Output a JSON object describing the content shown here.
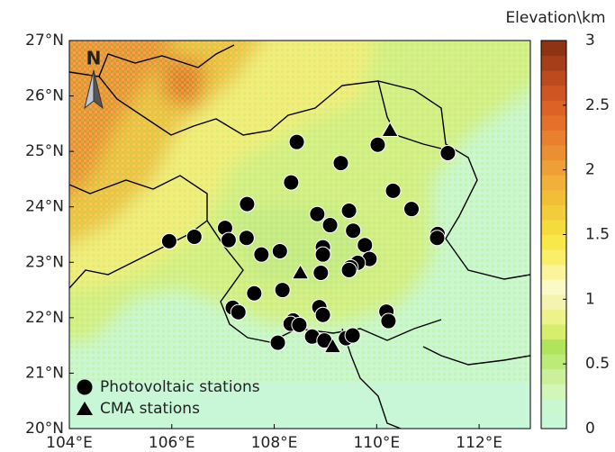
{
  "chart_data": {
    "type": "scatter",
    "xlim": [
      104,
      113
    ],
    "ylim": [
      20,
      27
    ],
    "xticks": [
      {
        "value": 104,
        "label": "104°E"
      },
      {
        "value": 106,
        "label": "106°E"
      },
      {
        "value": 108,
        "label": "108°E"
      },
      {
        "value": 110,
        "label": "110°E"
      },
      {
        "value": 112,
        "label": "112°E"
      }
    ],
    "yticks": [
      {
        "value": 20,
        "label": "20°N"
      },
      {
        "value": 21,
        "label": "21°N"
      },
      {
        "value": 22,
        "label": "22°N"
      },
      {
        "value": 23,
        "label": "23°N"
      },
      {
        "value": 24,
        "label": "24°N"
      },
      {
        "value": 25,
        "label": "25°N"
      },
      {
        "value": 26,
        "label": "26°N"
      },
      {
        "value": 27,
        "label": "27°N"
      }
    ],
    "north_label": "N",
    "legend": "lower left",
    "series": [
      {
        "name": "Photovoltaic stations",
        "marker": "circle",
        "color": "#000000",
        "x": [
          108.44,
          109.3,
          110.02,
          111.39,
          108.33,
          110.32,
          110.68,
          107.47,
          107.04,
          107.11,
          107.46,
          108.84,
          109.09,
          109.46,
          109.54,
          111.19,
          111.18,
          106.44,
          105.95,
          107.75,
          108.11,
          108.95,
          108.95,
          109.77,
          109.86,
          109.63,
          109.49,
          109.46,
          108.91,
          108.16,
          107.61,
          107.19,
          107.3,
          108.88,
          108.95,
          108.37,
          108.32,
          108.49,
          110.19,
          110.23,
          108.07,
          108.74,
          108.98,
          109.4,
          109.53
        ],
        "values": [
          25.17,
          24.79,
          25.12,
          24.97,
          24.44,
          24.29,
          23.96,
          24.05,
          23.62,
          23.4,
          23.44,
          23.87,
          23.67,
          23.93,
          23.57,
          23.51,
          23.44,
          23.46,
          23.38,
          23.14,
          23.2,
          23.27,
          23.14,
          23.31,
          23.06,
          22.99,
          22.91,
          22.86,
          22.81,
          22.5,
          22.44,
          22.18,
          22.1,
          22.19,
          22.05,
          21.95,
          21.89,
          21.87,
          22.11,
          21.94,
          21.55,
          21.66,
          21.59,
          21.63,
          21.68
        ]
      },
      {
        "name": "CMA stations",
        "marker": "triangle",
        "color": "#000000",
        "x": [
          110.26,
          108.51,
          109.14
        ],
        "values": [
          25.38,
          22.81,
          21.48
        ]
      }
    ],
    "colorbar": {
      "title": "Elevation\\km",
      "lim": [
        0,
        3
      ],
      "ticks": [
        0,
        0.5,
        1,
        1.5,
        2,
        2.5,
        3
      ],
      "colors": [
        "#c8f7d8",
        "#c9f7d0",
        "#d2f5b8",
        "#ccf09a",
        "#bdeb7a",
        "#b0e45c",
        "#d6ee6c",
        "#eef28a",
        "#f4f4b0",
        "#fafac8",
        "#fbf49a",
        "#fbef6a",
        "#f8e84a",
        "#f5dc3a",
        "#f3cc3a",
        "#f2be38",
        "#f0b03a",
        "#ee9f36",
        "#ec8f32",
        "#e9802e",
        "#e4702a",
        "#dc6226",
        "#cf5622",
        "#bd4a1e",
        "#a63e1a",
        "#8e3414"
      ]
    }
  }
}
